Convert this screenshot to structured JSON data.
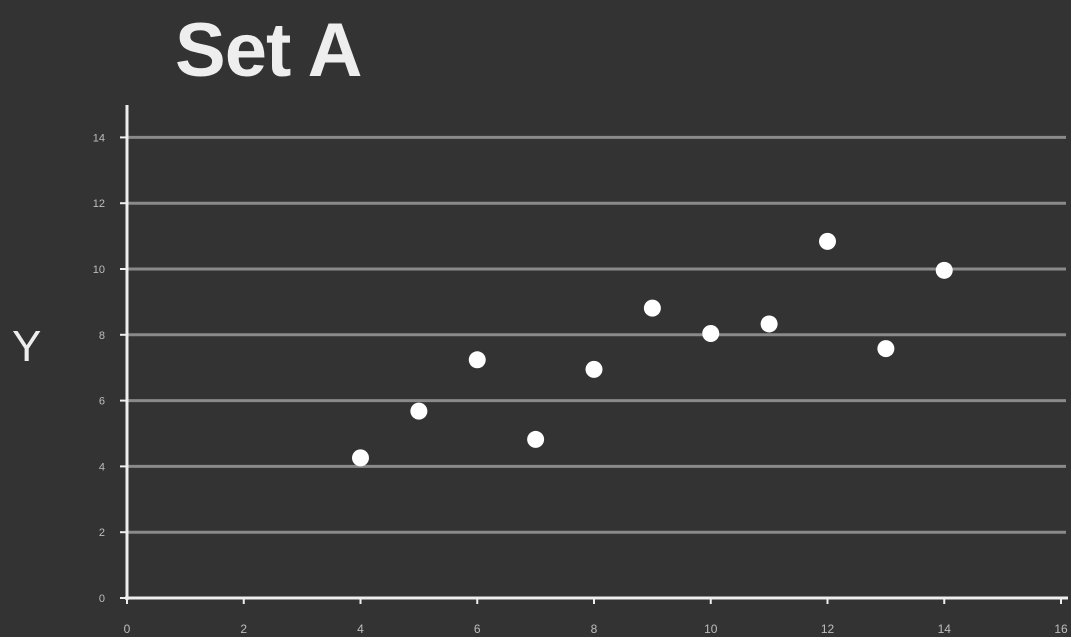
{
  "chart_data": {
    "type": "scatter",
    "title": "Set A",
    "xlabel": "",
    "ylabel": "Y",
    "xlim": [
      0,
      16
    ],
    "ylim": [
      0,
      15
    ],
    "xticks": [
      0,
      2,
      4,
      6,
      8,
      10,
      12,
      14,
      16
    ],
    "yticks": [
      0,
      2,
      4,
      6,
      8,
      10,
      12,
      14
    ],
    "grid": "horizontal",
    "legend": "none",
    "series": [
      {
        "points": [
          {
            "x": 4,
            "y": 4.26
          },
          {
            "x": 5,
            "y": 5.68
          },
          {
            "x": 6,
            "y": 7.24
          },
          {
            "x": 7,
            "y": 4.82
          },
          {
            "x": 8,
            "y": 6.95
          },
          {
            "x": 9,
            "y": 8.81
          },
          {
            "x": 10,
            "y": 8.04
          },
          {
            "x": 11,
            "y": 8.33
          },
          {
            "x": 12,
            "y": 10.84
          },
          {
            "x": 13,
            "y": 7.58
          },
          {
            "x": 14,
            "y": 9.96
          }
        ]
      }
    ],
    "colors": {
      "background": "#333333",
      "grid": "#8a8a8a",
      "axis": "#eeeeee",
      "points": "#ffffff",
      "text": "#eeeeee",
      "tick_text": "#bdbdbd"
    }
  }
}
